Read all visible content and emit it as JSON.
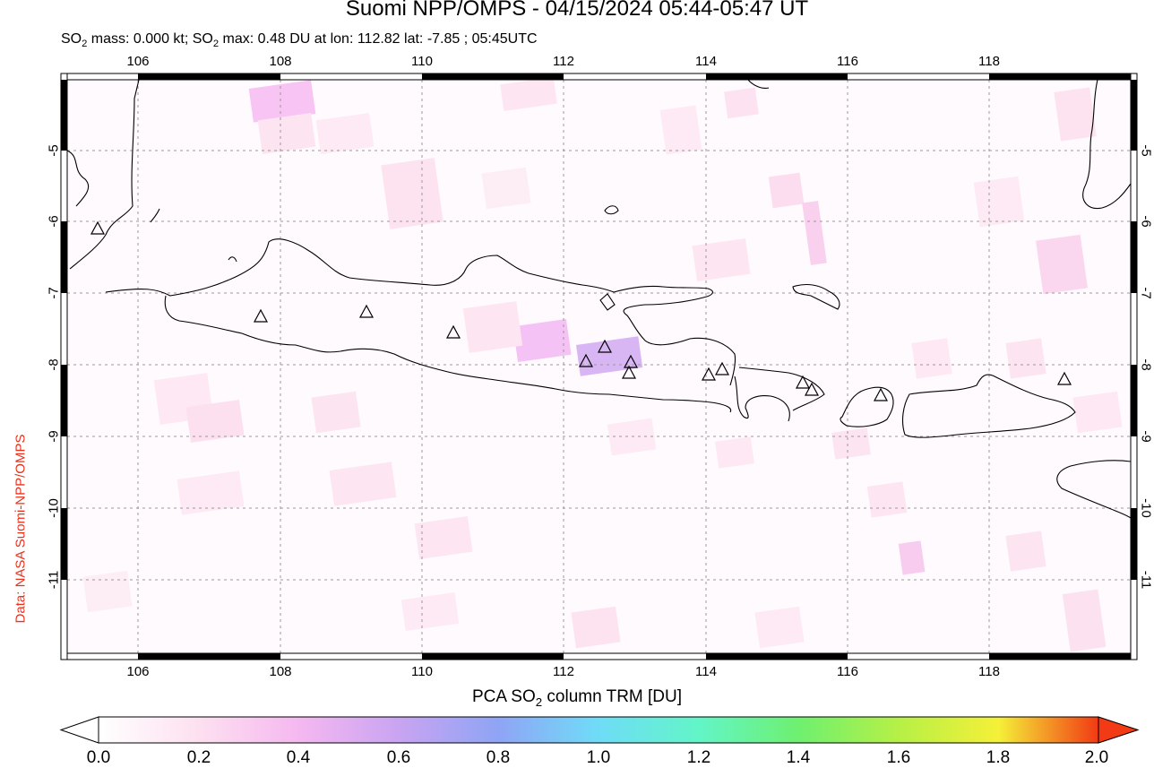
{
  "header": {
    "title": "Suomi NPP/OMPS - 04/15/2024 05:44-05:47 UT",
    "subtitle_pre": "SO",
    "subtitle_mid": " mass: 0.000 kt; SO",
    "subtitle_post": " max: 0.48 DU at lon: 112.82 lat: -7.85 ; 05:45UTC",
    "subscript": "2"
  },
  "credit": "Data: NASA Suomi-NPP/OMPS",
  "map": {
    "lon_range": [
      104.9,
      120.1
    ],
    "lat_range": [
      -12.1,
      -4.0
    ],
    "lon_ticks": [
      "106",
      "108",
      "110",
      "112",
      "114",
      "116",
      "118"
    ],
    "lat_ticks": [
      "-5",
      "-6",
      "-7",
      "-8",
      "-9",
      "-10",
      "-11"
    ],
    "volcano_marker": "triangle-outline",
    "coastline_color": "#000000",
    "grid": "dotted"
  },
  "colorbar": {
    "title_pre": "PCA SO",
    "title_sub": "2",
    "title_post": " column TRM [DU]",
    "ticks": [
      "0.0",
      "0.2",
      "0.4",
      "0.6",
      "0.8",
      "1.0",
      "1.2",
      "1.4",
      "1.6",
      "1.8",
      "2.0"
    ],
    "colors": [
      "#ffffff",
      "#fde0f0",
      "#f5b8f0",
      "#c9a4f2",
      "#8fa4f5",
      "#6fdcf7",
      "#62f5c8",
      "#6ef070",
      "#b6f046",
      "#f5f038",
      "#f7a030",
      "#f23a14"
    ]
  }
}
